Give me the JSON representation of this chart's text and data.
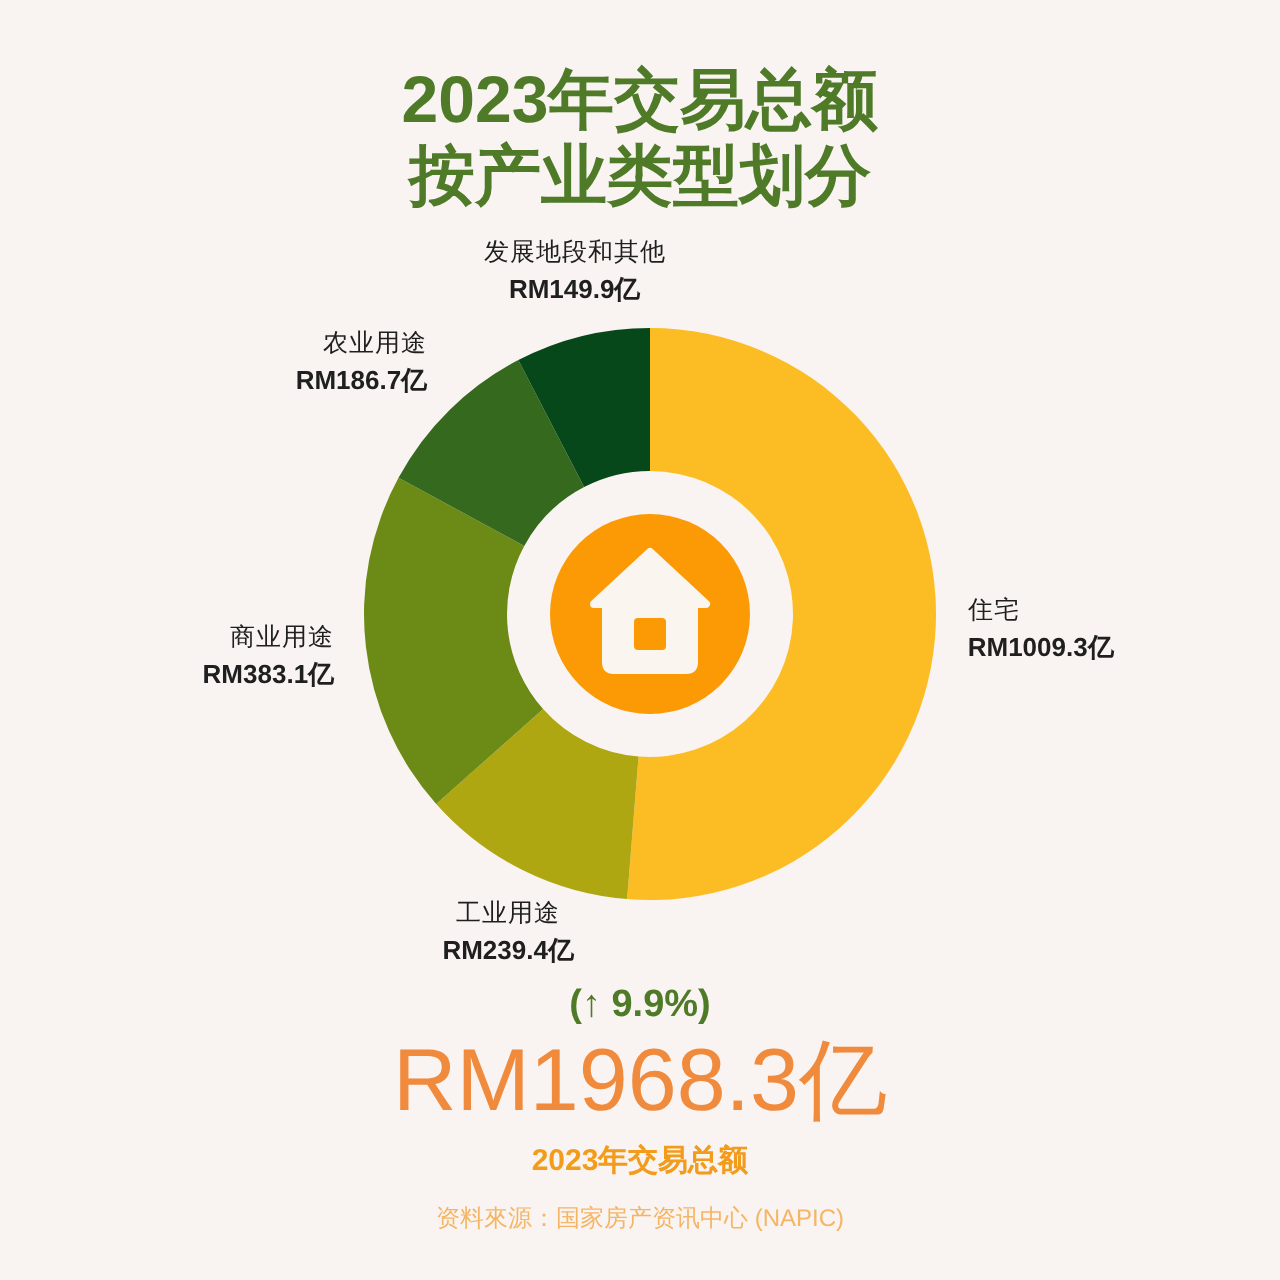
{
  "chart_data": {
    "type": "donut",
    "title": "2023年交易总额",
    "subtitle": "按产业类型划分",
    "categories": [
      "住宅",
      "工业用途",
      "商业用途",
      "农业用途",
      "发展地段和其他"
    ],
    "values": [
      1009.3,
      239.4,
      383.1,
      186.7,
      149.9
    ],
    "colors": [
      "#fcbd24",
      "#aea711",
      "#6b8a16",
      "#35691e",
      "#06481a"
    ],
    "value_labels": [
      "RM1009.3亿",
      "RM239.4亿",
      "RM383.1亿",
      "RM186.7亿",
      "RM149.9亿"
    ],
    "annotations": [
      "(↑ 9.9%)",
      "RM1968.3亿",
      "2023年交易总额",
      "资料來源：国家房产资讯中心 (NAPIC)"
    ]
  }
}
